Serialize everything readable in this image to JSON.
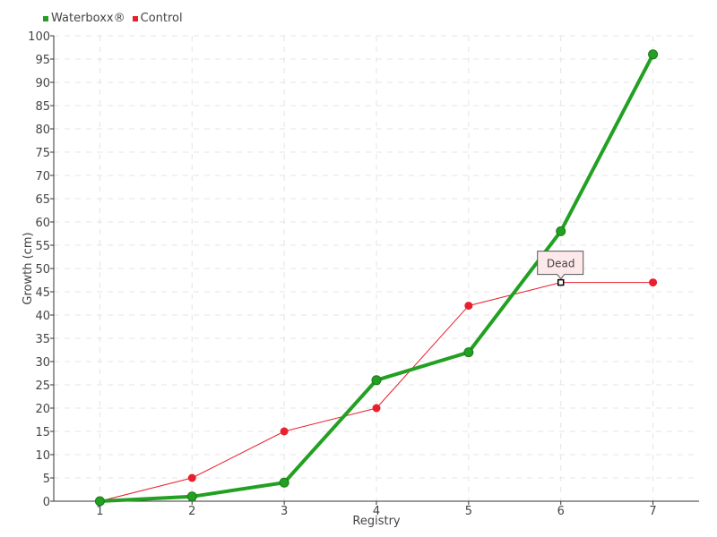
{
  "chart_data": {
    "type": "line",
    "xlabel": "Registry",
    "ylabel": "Growth (cm)",
    "x": [
      1,
      2,
      3,
      4,
      5,
      6,
      7
    ],
    "xlim": [
      0.5,
      7.5
    ],
    "ylim": [
      0,
      100
    ],
    "ytick_step": 5,
    "grid": true,
    "legend_placement": "top-left",
    "series": [
      {
        "name": "Waterboxx®",
        "color": "#22a022",
        "values": [
          0,
          1,
          4,
          26,
          32,
          58,
          96
        ]
      },
      {
        "name": "Control",
        "color": "#e8202e",
        "values": [
          0,
          5,
          15,
          20,
          42,
          47,
          47
        ]
      }
    ],
    "annotations": [
      {
        "text": "Dead",
        "series": "Control",
        "x": 6,
        "y": 47
      }
    ]
  }
}
